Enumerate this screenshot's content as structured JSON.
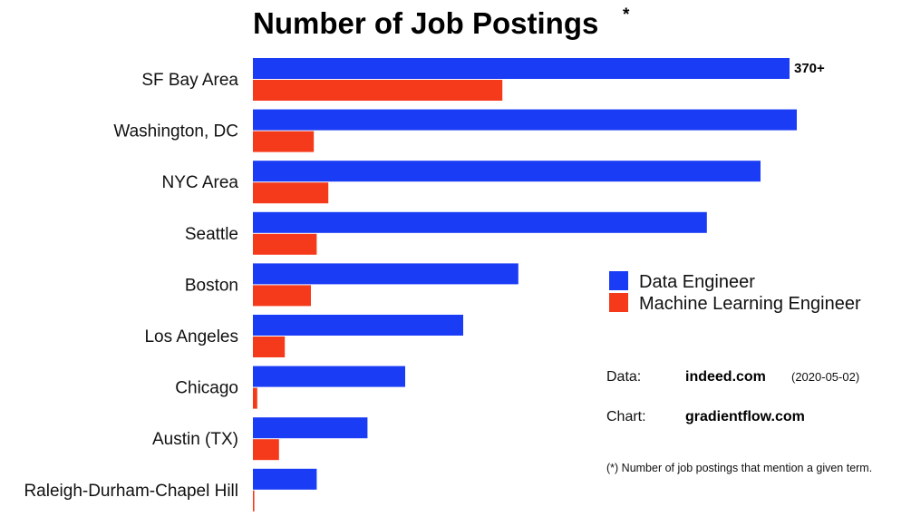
{
  "chart_data": {
    "type": "bar",
    "orientation": "horizontal",
    "title": "Number of Job Postings",
    "title_marker": "*",
    "categories": [
      "SF Bay Area",
      "Washington, DC",
      "NYC Area",
      "Seattle",
      "Boston",
      "Los Angeles",
      "Chicago",
      "Austin (TX)",
      "Raleigh-Durham-Chapel Hill"
    ],
    "series": [
      {
        "name": "Data Engineer",
        "color": "#1a3cf5",
        "values": [
          370,
          375,
          350,
          313,
          183,
          145,
          105,
          79,
          44
        ]
      },
      {
        "name": "Machine Learning Engineer",
        "color": "#f53a1b",
        "values": [
          172,
          42,
          52,
          44,
          40,
          22,
          3,
          18,
          1
        ]
      }
    ],
    "data_labels": [
      {
        "category": "SF Bay Area",
        "series": "Data Engineer",
        "text": "370+"
      }
    ],
    "xlim": [
      0,
      380
    ],
    "axis_labels_visible": false,
    "grid": false,
    "legend_position": "right"
  },
  "notes": {
    "data_key": "Data:",
    "data_source": "indeed.com",
    "data_date": "(2020-05-02)",
    "chart_key": "Chart:",
    "chart_source": "gradientflow.com",
    "footnote": "(*) Number of job postings that mention a given term."
  }
}
